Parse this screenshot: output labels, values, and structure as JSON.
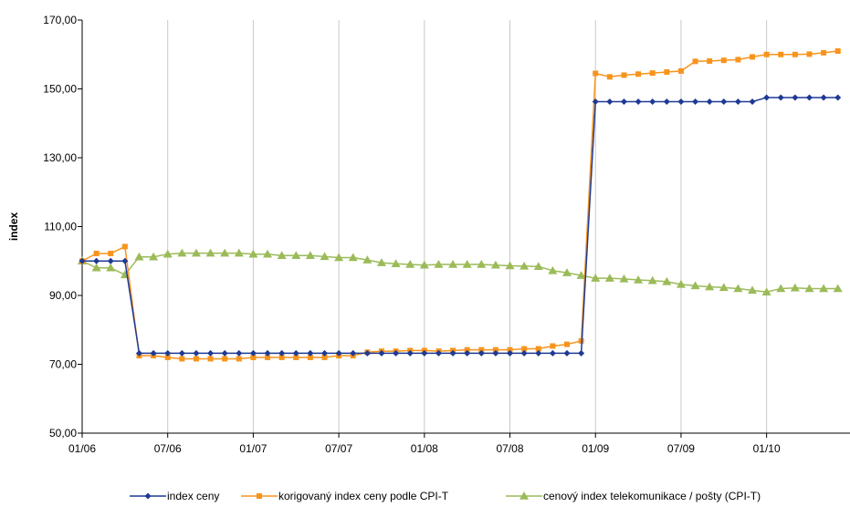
{
  "chart_data": {
    "type": "line",
    "title": "",
    "ylabel": "index",
    "xlabel": "",
    "ylim": [
      50,
      170
    ],
    "yticks": [
      50,
      70,
      90,
      110,
      130,
      150,
      170
    ],
    "ytick_labels": [
      "50,00",
      "70,00",
      "90,00",
      "110,00",
      "130,00",
      "150,00",
      "170,00"
    ],
    "xticks": [
      0,
      6,
      12,
      18,
      24,
      30,
      36,
      42,
      48
    ],
    "xtick_labels": [
      "01/06",
      "07/06",
      "01/07",
      "07/07",
      "01/08",
      "07/08",
      "01/09",
      "07/09",
      "01/10"
    ],
    "x_count": 54,
    "grid": "vertical",
    "legend_position": "bottom",
    "series": [
      {
        "name": "index ceny",
        "color": "#1F3A93",
        "marker": "diamond",
        "values": [
          100.0,
          100.0,
          100.0,
          100.0,
          73.2,
          73.2,
          73.2,
          73.2,
          73.2,
          73.2,
          73.2,
          73.2,
          73.2,
          73.2,
          73.2,
          73.2,
          73.2,
          73.2,
          73.2,
          73.2,
          73.2,
          73.2,
          73.2,
          73.2,
          73.2,
          73.2,
          73.2,
          73.2,
          73.2,
          73.2,
          73.2,
          73.2,
          73.2,
          73.2,
          73.2,
          73.2,
          146.3,
          146.3,
          146.3,
          146.3,
          146.3,
          146.3,
          146.3,
          146.3,
          146.3,
          146.3,
          146.3,
          146.3,
          147.5,
          147.5,
          147.5,
          147.5,
          147.5,
          147.5
        ]
      },
      {
        "name": "korigovaný index ceny podle CPI-T",
        "color": "#F7941D",
        "marker": "square",
        "values": [
          100.0,
          102.2,
          102.2,
          104.2,
          72.5,
          72.5,
          72.0,
          71.6,
          71.6,
          71.6,
          71.6,
          71.6,
          72.0,
          72.0,
          72.0,
          72.0,
          72.0,
          72.0,
          72.5,
          72.5,
          73.5,
          73.8,
          73.8,
          74.0,
          74.0,
          73.8,
          74.0,
          74.2,
          74.2,
          74.2,
          74.2,
          74.5,
          74.5,
          75.3,
          75.8,
          76.8,
          154.5,
          153.5,
          154.0,
          154.3,
          154.6,
          154.9,
          155.2,
          158.0,
          158.1,
          158.3,
          158.5,
          159.3,
          160.0,
          160.0,
          160.0,
          160.1,
          160.5,
          161.0
        ]
      },
      {
        "name": "cenový index telekomunikace / pošty (CPI-T)",
        "color": "#9BBB59",
        "marker": "triangle",
        "values": [
          100.0,
          98.0,
          98.0,
          96.0,
          101.2,
          101.2,
          102.0,
          102.3,
          102.3,
          102.3,
          102.3,
          102.3,
          102.0,
          102.0,
          101.6,
          101.6,
          101.6,
          101.3,
          101.0,
          101.0,
          100.3,
          99.5,
          99.2,
          99.0,
          98.8,
          99.0,
          99.0,
          99.0,
          99.0,
          98.8,
          98.6,
          98.5,
          98.4,
          97.2,
          96.6,
          95.8,
          95.0,
          95.0,
          94.8,
          94.5,
          94.3,
          94.0,
          93.2,
          92.8,
          92.5,
          92.3,
          92.0,
          91.5,
          91.0,
          92.0,
          92.2,
          92.0,
          92.0,
          92.0
        ]
      }
    ]
  }
}
